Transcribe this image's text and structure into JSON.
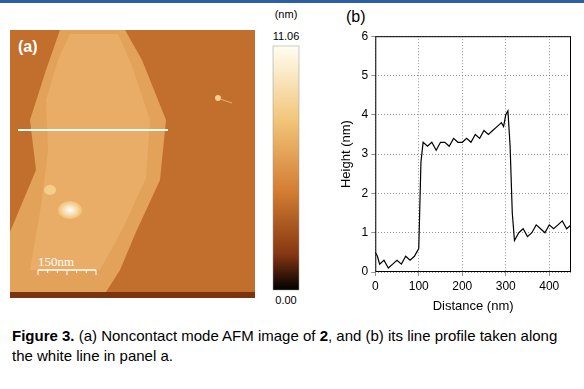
{
  "panel_a": {
    "letter": "(a)",
    "scale_bar": "150nm",
    "colorbar": {
      "unit": "(nm)",
      "range": [
        0,
        11.06
      ],
      "ticks": [
        {
          "value": 11.06,
          "label": "11.06"
        },
        {
          "value": 0,
          "label": "0.00"
        }
      ]
    }
  },
  "panel_b_letter": "(b)",
  "chart_data": {
    "type": "line",
    "xlabel": "Distance (nm)",
    "ylabel": "Height (nm)",
    "x": [
      0,
      5,
      10,
      20,
      30,
      40,
      50,
      60,
      70,
      80,
      90,
      95,
      100,
      105,
      110,
      120,
      130,
      140,
      150,
      160,
      170,
      180,
      190,
      200,
      210,
      220,
      230,
      240,
      250,
      260,
      270,
      280,
      290,
      295,
      300,
      305,
      310,
      315,
      320,
      330,
      340,
      350,
      360,
      370,
      380,
      390,
      400,
      410,
      420,
      430,
      440,
      450
    ],
    "values": [
      0.5,
      0.4,
      0.2,
      0.3,
      0.1,
      0.2,
      0.3,
      0.2,
      0.4,
      0.3,
      0.4,
      0.5,
      0.6,
      2.8,
      3.3,
      3.2,
      3.3,
      3.1,
      3.3,
      3.3,
      3.2,
      3.4,
      3.3,
      3.3,
      3.4,
      3.3,
      3.5,
      3.4,
      3.6,
      3.5,
      3.6,
      3.7,
      3.8,
      3.7,
      4.0,
      4.1,
      3.2,
      1.5,
      0.8,
      1.0,
      1.1,
      0.9,
      1.0,
      1.2,
      1.1,
      1.0,
      1.2,
      1.1,
      1.2,
      1.3,
      1.1,
      1.2
    ],
    "color": "#000000",
    "xlim": [
      0,
      450
    ],
    "xticks": [
      0,
      100,
      200,
      300,
      400
    ],
    "ylim": [
      0,
      6
    ],
    "yticks": [
      0,
      1,
      2,
      3,
      4,
      5,
      6
    ],
    "grid": true
  },
  "caption": {
    "label": "Figure 3.",
    "text_before": "(a) Noncontact mode AFM image of ",
    "bold": "2",
    "text_after": ", and (b) its line profile taken along the white line in panel a."
  }
}
